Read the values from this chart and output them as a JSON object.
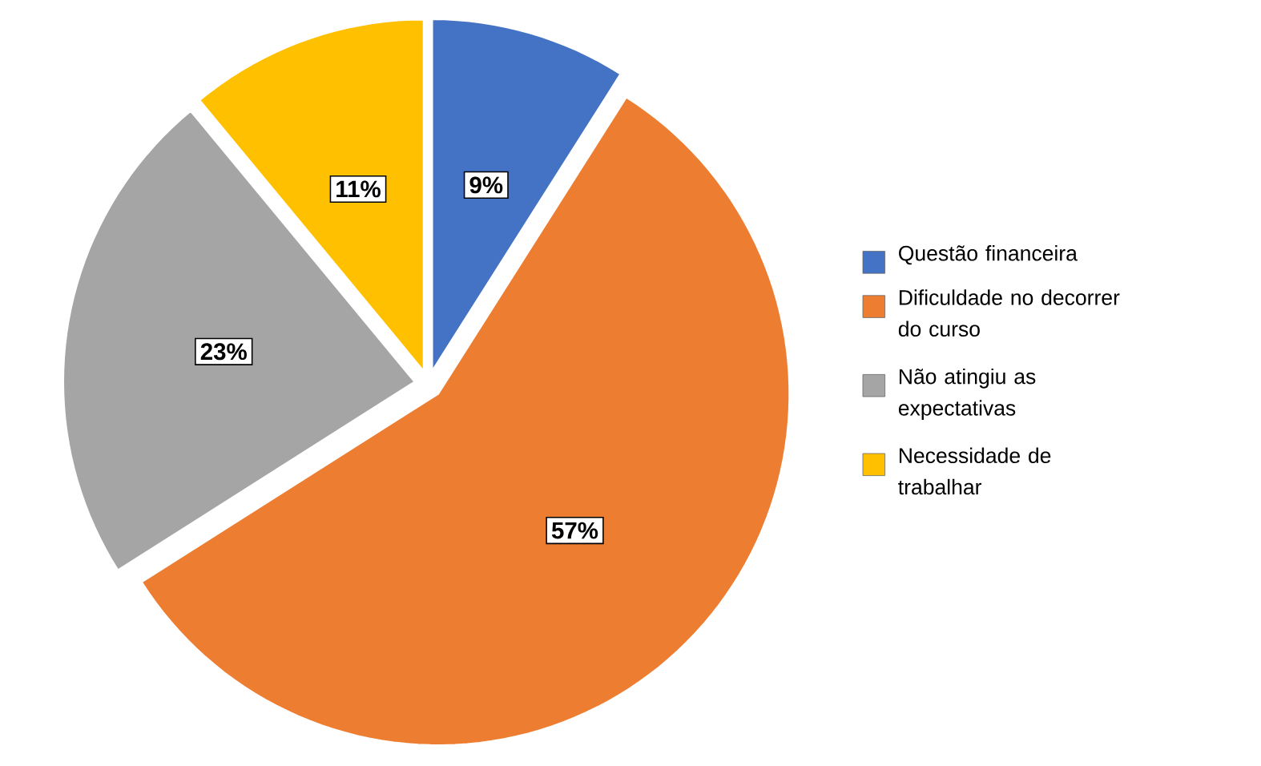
{
  "chart_data": {
    "type": "pie",
    "categories": [
      "Questão financeira",
      "Dificuldade no decorrer do curso",
      "Não atingiu as expectativas",
      "Necessidade de trabalhar"
    ],
    "values": [
      9,
      57,
      23,
      11
    ],
    "colors": [
      "#4472c4",
      "#ed7d31",
      "#a5a5a5",
      "#ffc000"
    ],
    "value_labels": [
      "9%",
      "57%",
      "23%",
      "11%"
    ],
    "legend": "right"
  }
}
